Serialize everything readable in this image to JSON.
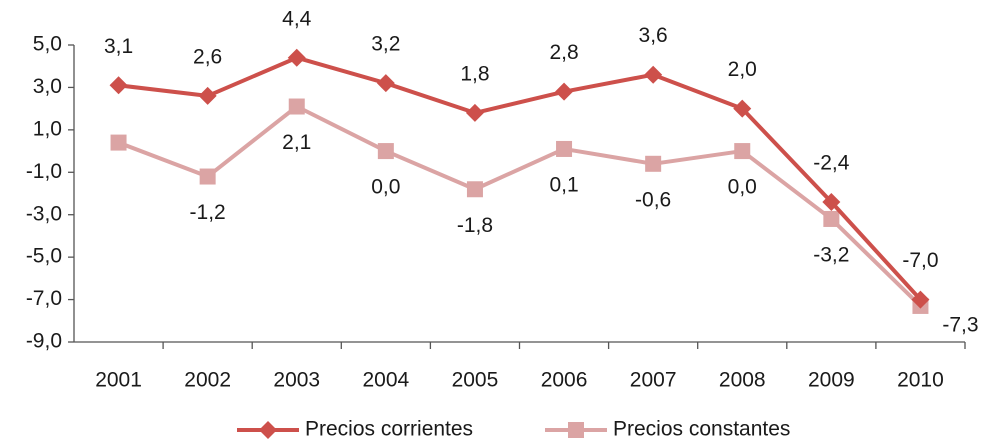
{
  "chart_data": {
    "type": "line",
    "categories": [
      "2001",
      "2002",
      "2003",
      "2004",
      "2005",
      "2006",
      "2007",
      "2008",
      "2009",
      "2010"
    ],
    "series": [
      {
        "name": "Precios corrientes",
        "color": "#cd504b",
        "marker": "diamond",
        "values": [
          3.1,
          2.6,
          4.4,
          3.2,
          1.8,
          2.8,
          3.6,
          2.0,
          -2.4,
          -7.0
        ],
        "value_labels": [
          "3,1",
          "2,6",
          "4,4",
          "3,2",
          "1,8",
          "2,8",
          "3,6",
          "2,0",
          "-2,4",
          "-7,0"
        ]
      },
      {
        "name": "Precios constantes",
        "color": "#dba4a4",
        "marker": "square",
        "values": [
          0.4,
          -1.2,
          2.1,
          0.0,
          -1.8,
          0.1,
          -0.6,
          0.0,
          -3.2,
          -7.3
        ],
        "value_labels": [
          null,
          "-1,2",
          "2,1",
          "0,0",
          "-1,8",
          "0,1",
          "-0,6",
          "0,0",
          "-3,2",
          "-7,3"
        ]
      }
    ],
    "ylim": [
      -9,
      5
    ],
    "yticks": [
      {
        "value": -9,
        "label": "-9,0"
      },
      {
        "value": -7,
        "label": "-7,0"
      },
      {
        "value": -5,
        "label": "-5,0"
      },
      {
        "value": -3,
        "label": "-3,0"
      },
      {
        "value": -1,
        "label": "-1,0"
      },
      {
        "value": 1,
        "label": "1,0"
      },
      {
        "value": 3,
        "label": "3,0"
      },
      {
        "value": 5,
        "label": "5,0"
      }
    ],
    "grid": false,
    "legend": "bottom"
  }
}
